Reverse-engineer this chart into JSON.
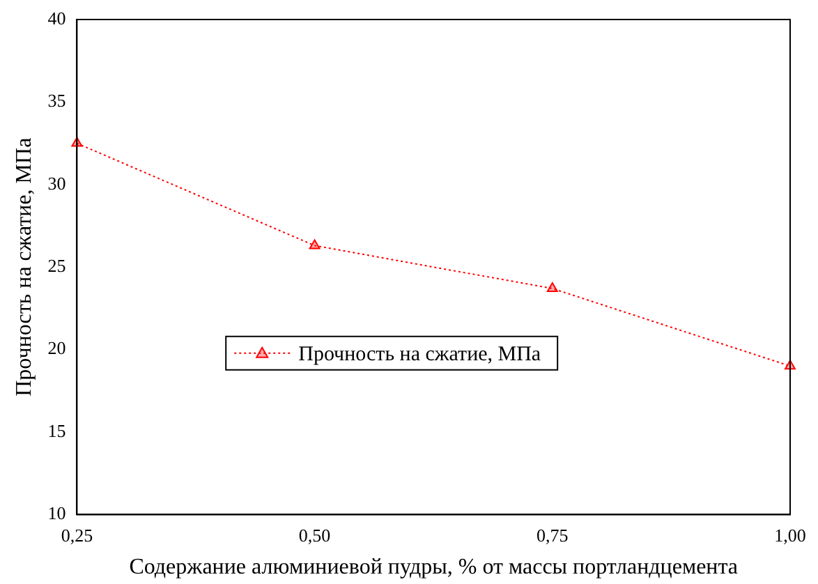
{
  "chart_data": {
    "type": "line",
    "xlabel": "Содержание алюминиевой пудры, % от массы портландцемента",
    "ylabel": "Прочность на сжатие, МПа",
    "categories": [
      "0,25",
      "0,50",
      "0,75",
      "1,00"
    ],
    "series": [
      {
        "name": "Прочность на сжатие, МПа",
        "color": "#ff0000",
        "values": [
          32.5,
          26.3,
          23.7,
          19.0
        ]
      }
    ],
    "ylim": [
      10,
      40
    ],
    "yticks": [
      10,
      15,
      20,
      25,
      30,
      35,
      40
    ],
    "grid": false,
    "legend": "bottom",
    "marker": "triangle",
    "line_style": "dotted"
  }
}
